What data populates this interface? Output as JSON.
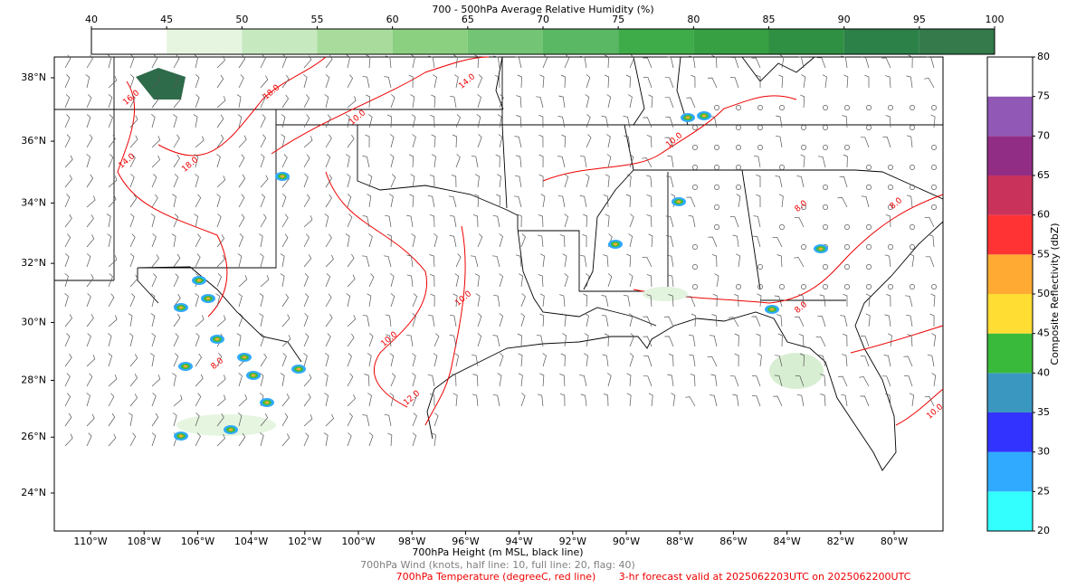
{
  "title": "700 - 500hPa Average Relative Humidity (%)",
  "humidity_colorbar": {
    "ticks": [
      40,
      45,
      50,
      55,
      60,
      65,
      70,
      75,
      80,
      85,
      90,
      95,
      100
    ],
    "colors": [
      "#ffffff",
      "#e5f5e0",
      "#c7e9c0",
      "#a9dc9c",
      "#8bcf81",
      "#74c476",
      "#5ab764",
      "#3fac4a",
      "#37a043",
      "#2f8f42",
      "#2b8148",
      "#347a4b",
      "#356b4d"
    ]
  },
  "reflectivity_colorbar": {
    "label": "Composite Reflectivity (dbZ)",
    "ticks": [
      20,
      25,
      30,
      35,
      40,
      45,
      50,
      55,
      60,
      65,
      70,
      75,
      80
    ],
    "colors": [
      "#33ffff",
      "#30aaff",
      "#3333ff",
      "#3a97c0",
      "#3aba3a",
      "#ffdd33",
      "#ffaa33",
      "#ff3333",
      "#c9325a",
      "#922d86",
      "#9158b5",
      "#ffffff"
    ]
  },
  "map": {
    "lat_ticks": [
      {
        "value": 38,
        "label": "38°N"
      },
      {
        "value": 36,
        "label": "36°N"
      },
      {
        "value": 34,
        "label": "34°N"
      },
      {
        "value": 32,
        "label": "32°N"
      },
      {
        "value": 30,
        "label": "30°N"
      },
      {
        "value": 28,
        "label": "28°N"
      },
      {
        "value": 26,
        "label": "26°N"
      },
      {
        "value": 24,
        "label": "24°N"
      }
    ],
    "lon_ticks": [
      {
        "value": 110,
        "label": "110°W"
      },
      {
        "value": 108,
        "label": "108°W"
      },
      {
        "value": 106,
        "label": "106°W"
      },
      {
        "value": 104,
        "label": "104°W"
      },
      {
        "value": 102,
        "label": "102°W"
      },
      {
        "value": 100,
        "label": "100°W"
      },
      {
        "value": 98,
        "label": "98°W"
      },
      {
        "value": 96,
        "label": "96°W"
      },
      {
        "value": 94,
        "label": "94°W"
      },
      {
        "value": 92,
        "label": "92°W"
      },
      {
        "value": 90,
        "label": "90°W"
      },
      {
        "value": 88,
        "label": "88°W"
      },
      {
        "value": 86,
        "label": "86°W"
      },
      {
        "value": 84,
        "label": "84°W"
      },
      {
        "value": 82,
        "label": "82°W"
      },
      {
        "value": 80,
        "label": "80°W"
      }
    ],
    "contour_labels": [
      "14.0",
      "16.0",
      "18.0",
      "18.0",
      "14.0",
      "10.0",
      "10.0",
      "10.0",
      "10.0",
      "12.0",
      "8.0",
      "8.0",
      "8.0",
      "8.0",
      "10.0"
    ]
  },
  "footer": {
    "height": "700hPa Height (m MSL, black line)",
    "wind": "700hPa Wind (knots, half line: 10, full line: 20, flag: 40)",
    "temperature": "700hPa Temperature (degreeC, red line)",
    "forecast": "3-hr forecast valid at 2025062203UTC on 2025062200UTC"
  }
}
